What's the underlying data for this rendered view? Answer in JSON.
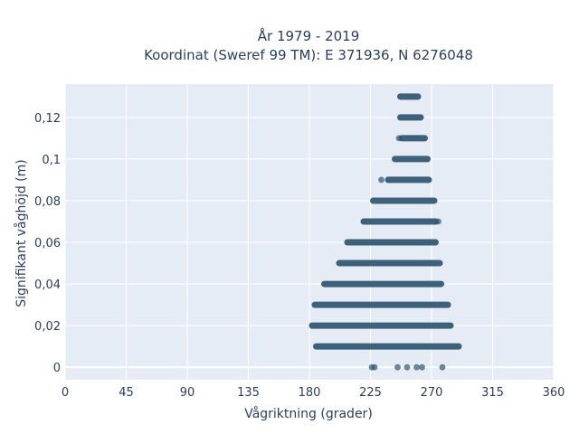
{
  "chart_data": {
    "type": "scatter",
    "title_line1": "År 1979 - 2019",
    "title_line2": "Koordinat (Sweref 99 TM): E 371936, N 6276048",
    "xlabel": "Vågriktning (grader)",
    "ylabel": "Signifikant våghöjd (m)",
    "xlim": [
      0,
      360
    ],
    "ylim": [
      -0.006,
      0.136
    ],
    "x_ticks": [
      0,
      45,
      90,
      135,
      180,
      225,
      270,
      315,
      360
    ],
    "x_tick_labels": [
      "0",
      "45",
      "90",
      "135",
      "180",
      "225",
      "270",
      "315",
      "360"
    ],
    "y_ticks": [
      0,
      0.02,
      0.04,
      0.06,
      0.08,
      0.1,
      0.12
    ],
    "y_tick_labels": [
      "0",
      "0,02",
      "0,04",
      "0,06",
      "0,08",
      "0,1",
      "0,12"
    ],
    "grid": true,
    "marker_color": "#2f5570",
    "plot_bg": "#e5ecf6",
    "series": [
      {
        "bands": [
          {
            "y": 0.13,
            "xmin": 247,
            "xmax": 260
          },
          {
            "y": 0.12,
            "xmin": 247,
            "xmax": 262
          },
          {
            "y": 0.11,
            "xmin": 248,
            "xmax": 265
          },
          {
            "y": 0.1,
            "xmin": 243,
            "xmax": 267
          },
          {
            "y": 0.09,
            "xmin": 238,
            "xmax": 268
          },
          {
            "y": 0.08,
            "xmin": 227,
            "xmax": 272
          },
          {
            "y": 0.07,
            "xmin": 220,
            "xmax": 273
          },
          {
            "y": 0.06,
            "xmin": 208,
            "xmax": 273
          },
          {
            "y": 0.05,
            "xmin": 202,
            "xmax": 276
          },
          {
            "y": 0.04,
            "xmin": 191,
            "xmax": 277
          },
          {
            "y": 0.03,
            "xmin": 184,
            "xmax": 282
          },
          {
            "y": 0.02,
            "xmin": 182,
            "xmax": 284
          },
          {
            "y": 0.01,
            "xmin": 185,
            "xmax": 290
          }
        ],
        "extra_points": [
          {
            "x": 233,
            "y": 0.09
          },
          {
            "x": 246,
            "y": 0.11
          },
          {
            "x": 275,
            "y": 0.07
          },
          {
            "x": 226,
            "y": 0
          },
          {
            "x": 228,
            "y": 0
          },
          {
            "x": 245,
            "y": 0
          },
          {
            "x": 252,
            "y": 0
          },
          {
            "x": 259,
            "y": 0
          },
          {
            "x": 263,
            "y": 0
          },
          {
            "x": 278,
            "y": 0
          }
        ]
      }
    ]
  }
}
